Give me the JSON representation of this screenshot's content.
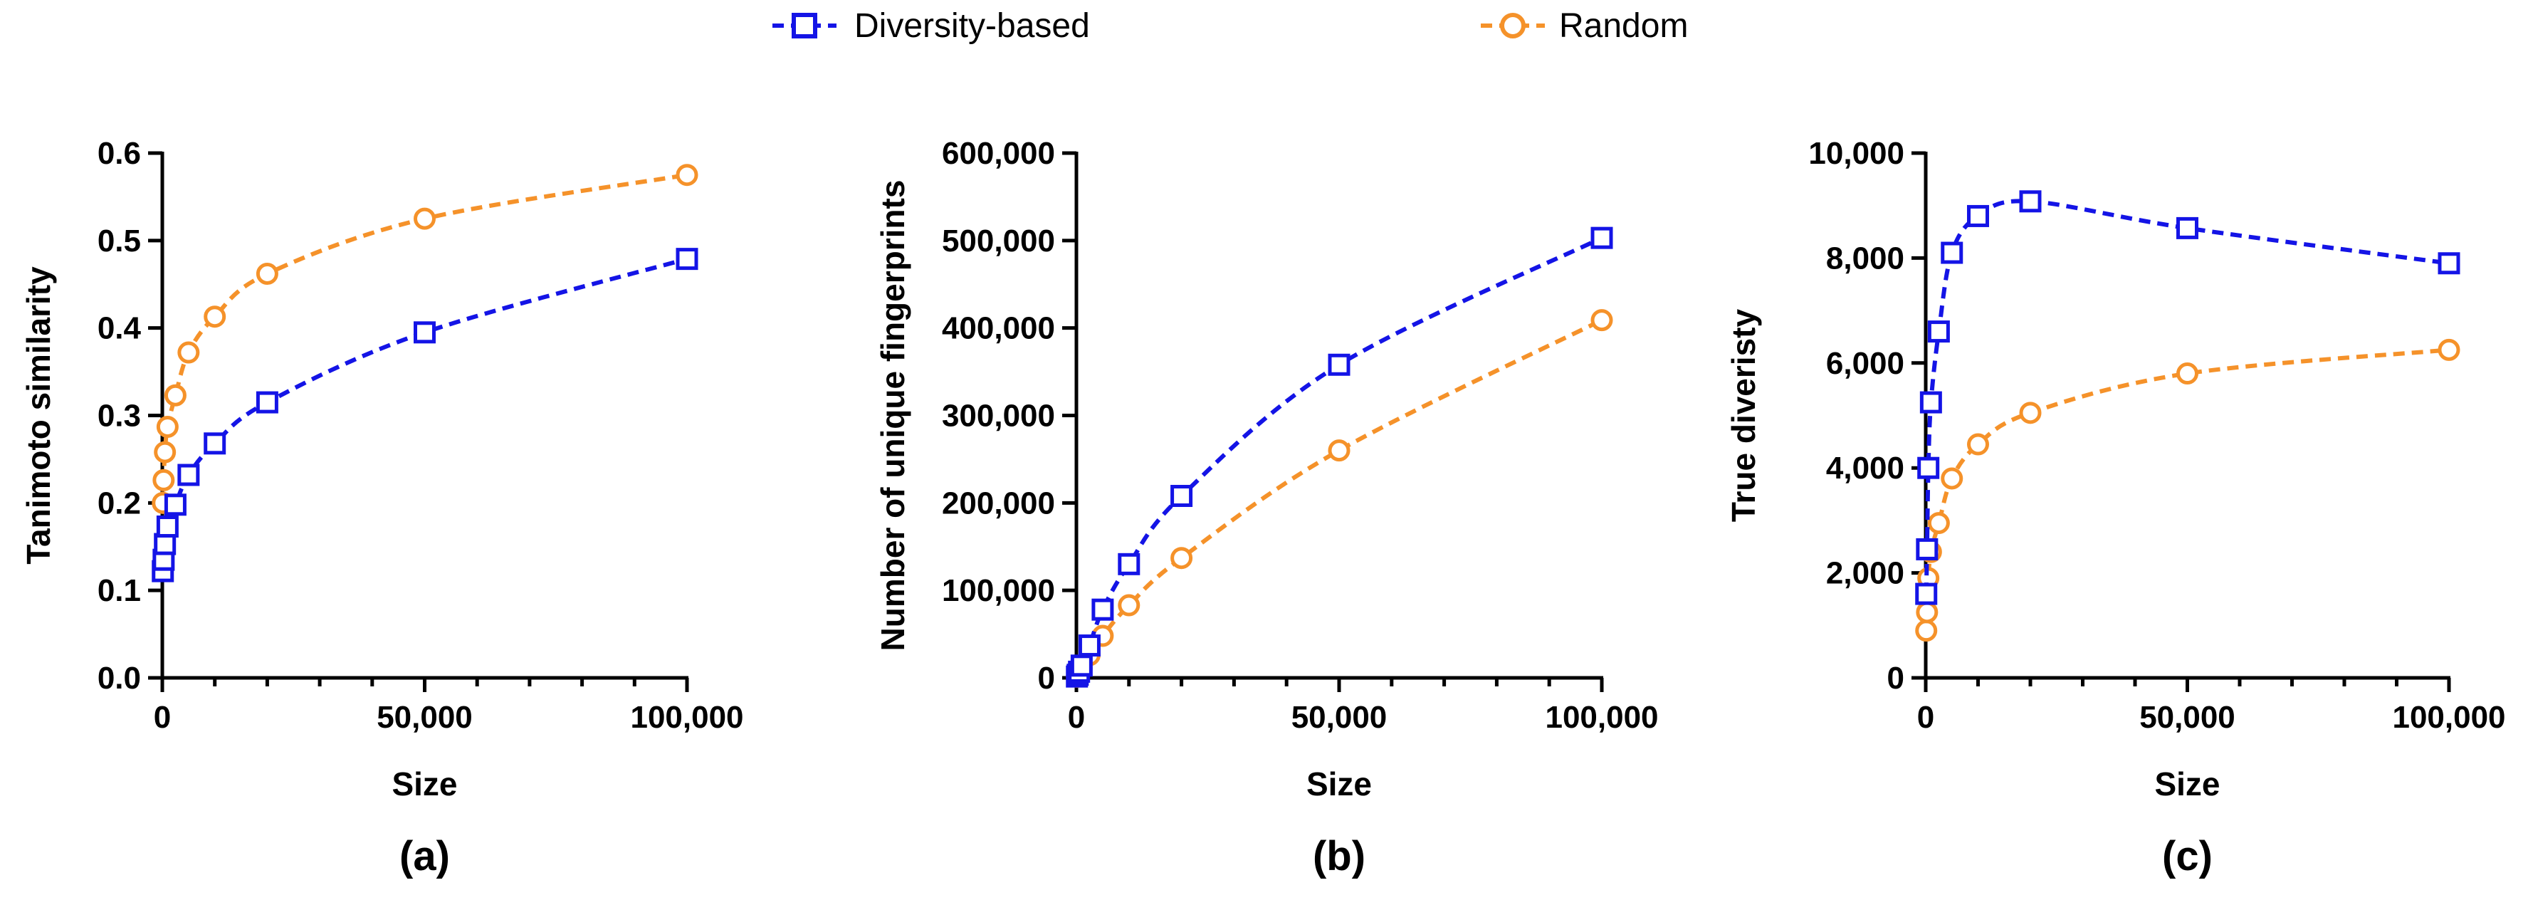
{
  "legend": [
    {
      "name": "Diversity-based",
      "color": "#1414e6",
      "marker": "square"
    },
    {
      "name": "Random",
      "color": "#f5922a",
      "marker": "circle"
    }
  ],
  "chart_data": [
    {
      "type": "line",
      "panel_label": "(a)",
      "xlabel": "Size",
      "ylabel": "Tanimoto similarity",
      "xlim": [
        0,
        100000
      ],
      "ylim": [
        0,
        0.6
      ],
      "x_ticks": [
        0,
        50000,
        100000
      ],
      "x_tick_labels": [
        "0",
        "50,000",
        "100,000"
      ],
      "y_ticks": [
        0,
        0.1,
        0.2,
        0.3,
        0.4,
        0.5,
        0.6
      ],
      "y_tick_labels": [
        "0.0",
        "0.1",
        "0.2",
        "0.3",
        "0.4",
        "0.5",
        "0.6"
      ],
      "x_minor_ticks": [
        10000,
        20000,
        30000,
        40000,
        60000,
        70000,
        80000,
        90000
      ],
      "series": [
        {
          "name": "Diversity-based",
          "x": [
            100,
            250,
            500,
            1000,
            2500,
            5000,
            10000,
            20000,
            50000,
            100000
          ],
          "y": [
            0.122,
            0.135,
            0.153,
            0.173,
            0.198,
            0.232,
            0.268,
            0.315,
            0.395,
            0.479
          ]
        },
        {
          "name": "Random",
          "x": [
            100,
            250,
            500,
            1000,
            2500,
            5000,
            10000,
            20000,
            50000,
            100000
          ],
          "y": [
            0.2,
            0.226,
            0.258,
            0.287,
            0.323,
            0.372,
            0.413,
            0.462,
            0.525,
            0.575
          ]
        }
      ]
    },
    {
      "type": "line",
      "panel_label": "(b)",
      "xlabel": "Size",
      "ylabel": "Number of unique fingerprints",
      "xlim": [
        0,
        100000
      ],
      "ylim": [
        0,
        600000
      ],
      "x_ticks": [
        0,
        50000,
        100000
      ],
      "x_tick_labels": [
        "0",
        "50,000",
        "100,000"
      ],
      "y_ticks": [
        0,
        100000,
        200000,
        300000,
        400000,
        500000,
        600000
      ],
      "y_tick_labels": [
        "0",
        "100,000",
        "200,000",
        "300,000",
        "400,000",
        "500,000",
        "600,000"
      ],
      "x_minor_ticks": [
        10000,
        20000,
        30000,
        40000,
        60000,
        70000,
        80000,
        90000
      ],
      "series": [
        {
          "name": "Diversity-based",
          "x": [
            100,
            250,
            500,
            1000,
            2500,
            5000,
            10000,
            20000,
            50000,
            100000
          ],
          "y": [
            1500,
            3500,
            7000,
            14000,
            37000,
            78000,
            130000,
            208000,
            358000,
            503000
          ]
        },
        {
          "name": "Random",
          "x": [
            100,
            250,
            500,
            1000,
            2500,
            5000,
            10000,
            20000,
            50000,
            100000
          ],
          "y": [
            1200,
            3000,
            5000,
            11000,
            26000,
            48000,
            83000,
            137000,
            260000,
            409000
          ]
        }
      ]
    },
    {
      "type": "line",
      "panel_label": "(c)",
      "xlabel": "Size",
      "ylabel": "True diveristy",
      "xlim": [
        0,
        100000
      ],
      "ylim": [
        0,
        10000
      ],
      "x_ticks": [
        0,
        50000,
        100000
      ],
      "x_tick_labels": [
        "0",
        "50,000",
        "100,000"
      ],
      "y_ticks": [
        0,
        2000,
        4000,
        6000,
        8000,
        10000
      ],
      "y_tick_labels": [
        "0",
        "2,000",
        "4,000",
        "6,000",
        "8,000",
        "10,000"
      ],
      "x_minor_ticks": [
        10000,
        20000,
        30000,
        40000,
        60000,
        70000,
        80000,
        90000
      ],
      "series": [
        {
          "name": "Diversity-based",
          "x": [
            100,
            250,
            500,
            1000,
            2500,
            5000,
            10000,
            20000,
            50000,
            100000
          ],
          "y": [
            1600,
            2450,
            4000,
            5250,
            6600,
            8100,
            8800,
            9080,
            8570,
            7900
          ]
        },
        {
          "name": "Random",
          "x": [
            100,
            250,
            500,
            1000,
            2500,
            5000,
            10000,
            20000,
            50000,
            100000
          ],
          "y": [
            900,
            1250,
            1900,
            2400,
            2950,
            3800,
            4450,
            5050,
            5800,
            6250
          ]
        }
      ]
    }
  ]
}
